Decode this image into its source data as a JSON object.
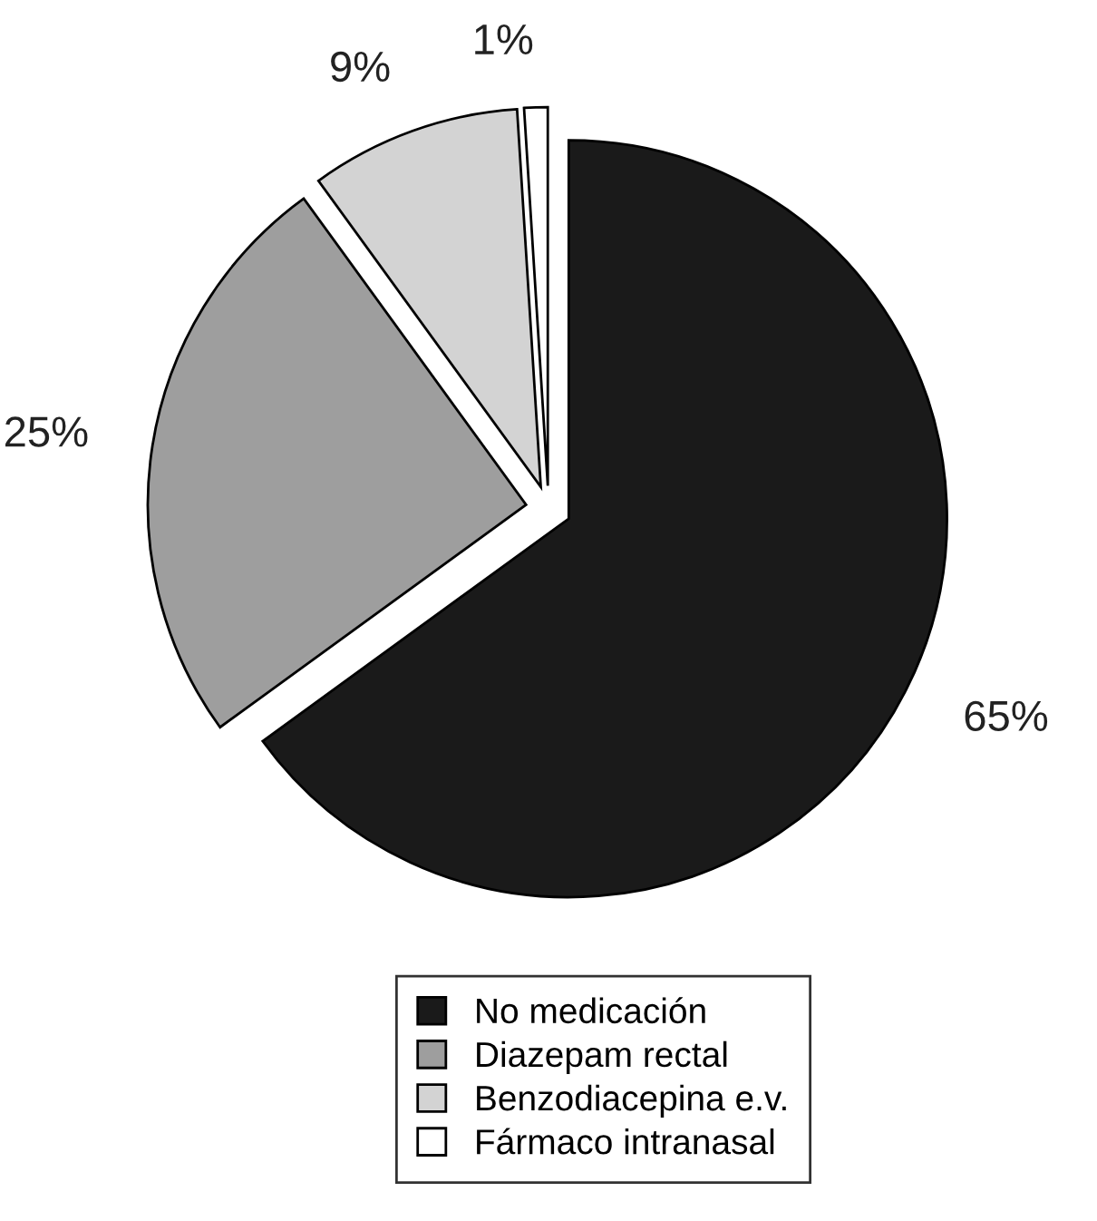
{
  "chart_data": {
    "type": "pie",
    "categories": [
      "No medicación",
      "Diazepam rectal",
      "Benzodiacepina e.v.",
      "Fármaco intranasal"
    ],
    "values": [
      65,
      25,
      9,
      1
    ],
    "colors": [
      "#1a1a1a",
      "#9e9e9e",
      "#d3d3d3",
      "#ffffff"
    ],
    "value_labels": [
      "65%",
      "25%",
      "9%",
      "1%"
    ],
    "legend": "bottom"
  }
}
